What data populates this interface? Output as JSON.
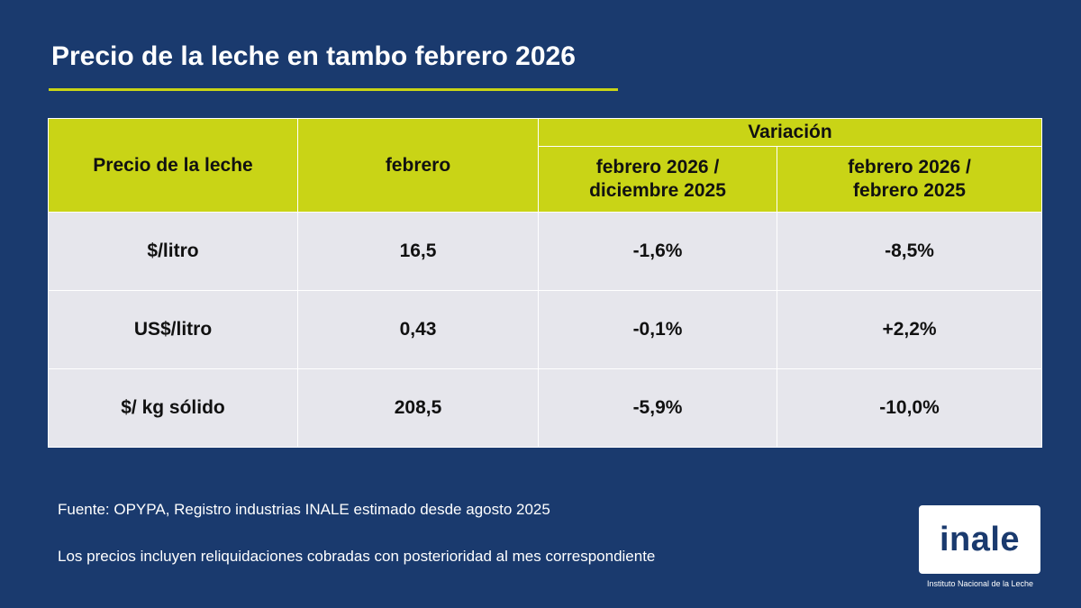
{
  "title": "Precio de la leche en tambo febrero 2026",
  "table": {
    "header": {
      "row_label": "Precio de la leche",
      "current": "febrero",
      "variation_group": "Variación",
      "variation_cols": [
        {
          "line1": "febrero 2026 /",
          "line2": "diciembre 2025"
        },
        {
          "line1": "febrero 2026 /",
          "line2": "febrero 2025"
        }
      ]
    },
    "rows": [
      {
        "label": "$/litro",
        "value": "16,5",
        "var1": "-1,6%",
        "var2": "-8,5%"
      },
      {
        "label": "US$/litro",
        "value": "0,43",
        "var1": "-0,1%",
        "var2": "+2,2%"
      },
      {
        "label": "$/ kg sólido",
        "value": "208,5",
        "var1": "-5,9%",
        "var2": "-10,0%"
      }
    ]
  },
  "notes": {
    "source": "Fuente: OPYPA, Registro industrias INALE estimado desde agosto 2025",
    "prices": "Los precios incluyen reliquidaciones cobradas con posterioridad al mes correspondiente"
  },
  "logo": {
    "word": "inale",
    "caption": "Instituto Nacional de la Leche"
  },
  "colors": {
    "background": "#1a3a6e",
    "accent": "#c9d416",
    "row_fill": "#e6e6ec"
  }
}
